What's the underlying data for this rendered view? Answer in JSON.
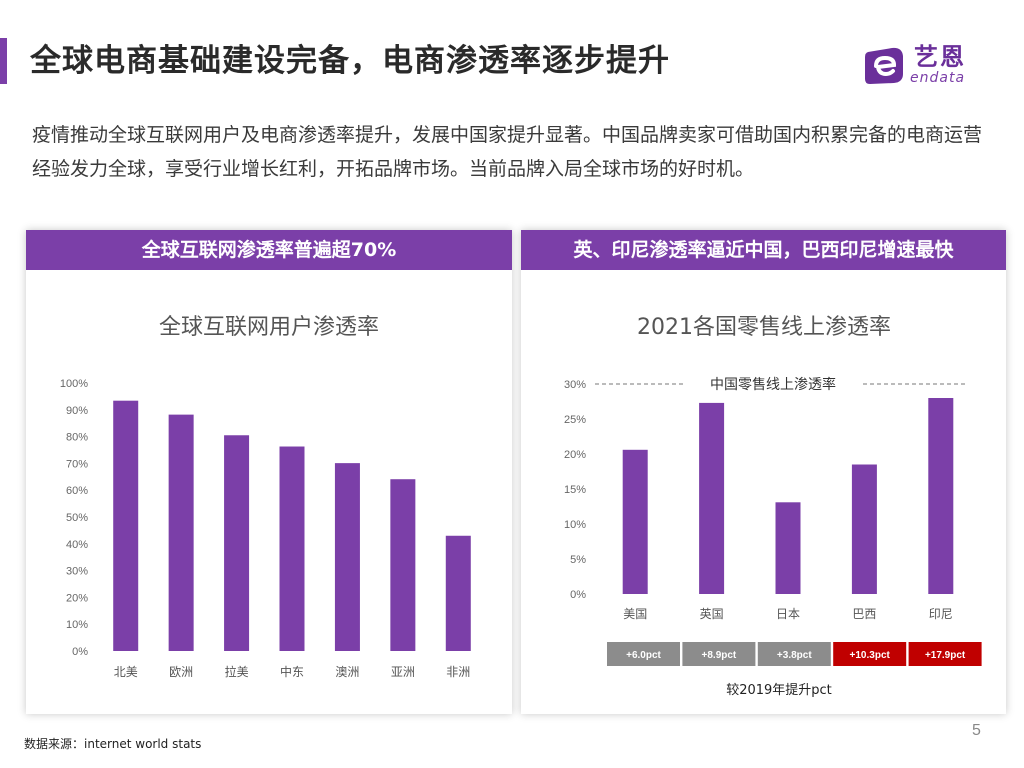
{
  "page": {
    "title": "全球电商基础建设完备，电商渗透率逐步提升",
    "intro": "疫情推动全球互联网用户及电商渗透率提升，发展中国家提升显著。中国品牌卖家可借助国内积累完备的电商运营经验发力全球，享受行业增长红利，开拓品牌市场。当前品牌入局全球市场的好时机。",
    "source": "数据来源：internet world stats",
    "page_number": "5"
  },
  "logo": {
    "cn": "艺恩",
    "en": "endata"
  },
  "colors": {
    "accent": "#7b3fa8",
    "bar": "#7b3fa8",
    "pct_gray": "#8c8c8c",
    "pct_red": "#c00000"
  },
  "left_panel": {
    "header": "全球互联网渗透率普遍超70%"
  },
  "right_panel": {
    "header": "英、印尼渗透率逼近中国，巴西印尼增速最快",
    "reference_label": "中国零售线上渗透率",
    "pct_caption": "较2019年提升pct",
    "pct_changes": [
      {
        "label": "+6.0pct",
        "highlight": false
      },
      {
        "label": "+8.9pct",
        "highlight": false
      },
      {
        "label": "+3.8pct",
        "highlight": false
      },
      {
        "label": "+10.3pct",
        "highlight": true
      },
      {
        "label": "+17.9pct",
        "highlight": true
      }
    ]
  },
  "chart_data": [
    {
      "type": "bar",
      "title": "全球互联网用户渗透率",
      "categories": [
        "北美",
        "欧洲",
        "拉美",
        "中东",
        "澳洲",
        "亚洲",
        "非洲"
      ],
      "values": [
        93.4,
        88.2,
        80.5,
        76.3,
        70.1,
        64.1,
        43.0
      ],
      "ylim": [
        0,
        100
      ],
      "yticks": [
        "0%",
        "10%",
        "20%",
        "30%",
        "40%",
        "50%",
        "60%",
        "70%",
        "80%",
        "90%",
        "100%"
      ],
      "xlabel": "",
      "ylabel": "",
      "grid": false,
      "legend": "none"
    },
    {
      "type": "bar",
      "title": "2021各国零售线上渗透率",
      "categories": [
        "美国",
        "英国",
        "日本",
        "巴西",
        "印尼"
      ],
      "values": [
        20.6,
        27.3,
        13.1,
        18.5,
        28.0
      ],
      "ylim": [
        0,
        30
      ],
      "yticks": [
        "0%",
        "5%",
        "10%",
        "15%",
        "20%",
        "25%",
        "30%"
      ],
      "reference_line": 30,
      "xlabel": "",
      "ylabel": "",
      "grid": false,
      "legend": "none"
    }
  ]
}
